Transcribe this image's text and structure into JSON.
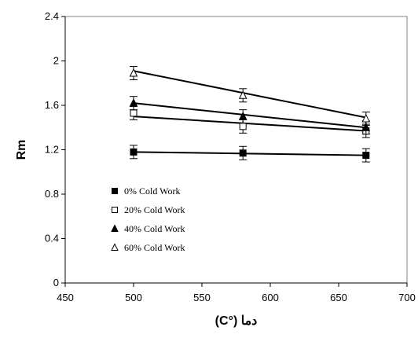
{
  "chart_data": {
    "type": "scatter",
    "title": "",
    "xlabel": "دما (°C)",
    "ylabel": "Rm",
    "xlim": [
      450,
      700
    ],
    "ylim": [
      0,
      2.4
    ],
    "xticks": [
      450,
      500,
      550,
      600,
      650,
      700
    ],
    "yticks": [
      0,
      0.4,
      0.8,
      1.2,
      1.6,
      2,
      2.4
    ],
    "ytick_labels": [
      "0",
      "0.4",
      "0.8",
      "1.2",
      "1.6",
      "2",
      "2.4"
    ],
    "grid": false,
    "legend_position": "bottom-left",
    "x": [
      500,
      580,
      670
    ],
    "series": [
      {
        "name": "0% Cold Work",
        "marker": "square-filled",
        "values": [
          1.18,
          1.17,
          1.15
        ],
        "error": [
          0.06,
          0.06,
          0.06
        ],
        "trend": [
          1.18,
          1.15
        ]
      },
      {
        "name": "20% Cold Work",
        "marker": "square-open",
        "values": [
          1.53,
          1.41,
          1.37
        ],
        "error": [
          0.06,
          0.06,
          0.06
        ],
        "trend": [
          1.5,
          1.37
        ]
      },
      {
        "name": "40% Cold Work",
        "marker": "triangle-filled",
        "values": [
          1.62,
          1.5,
          1.4
        ],
        "error": [
          0.06,
          0.06,
          0.06
        ],
        "trend": [
          1.62,
          1.4
        ]
      },
      {
        "name": "60% Cold Work",
        "marker": "triangle-open",
        "values": [
          1.89,
          1.69,
          1.48
        ],
        "error": [
          0.06,
          0.06,
          0.06
        ],
        "trend": [
          1.91,
          1.49
        ]
      }
    ]
  }
}
